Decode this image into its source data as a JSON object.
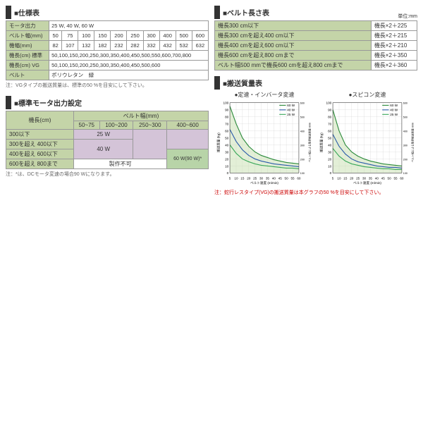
{
  "spec": {
    "title": "■仕様表",
    "rows": [
      {
        "label": "モータ出力",
        "values": [
          "25 W, 40 W, 60 W"
        ],
        "colspan": 10
      },
      {
        "label": "ベルト幅(mm)",
        "values": [
          "50",
          "75",
          "100",
          "150",
          "200",
          "250",
          "300",
          "400",
          "500",
          "600"
        ]
      },
      {
        "label": "機幅(mm)",
        "values": [
          "82",
          "107",
          "132",
          "182",
          "232",
          "282",
          "332",
          "432",
          "532",
          "632"
        ]
      },
      {
        "label": "機長(cm) 標準",
        "values": [
          "50,100,150,200,250,300,350,400,450,500,550,600,700,800"
        ],
        "colspan": 10
      },
      {
        "label": "機長(cm) VG",
        "values": [
          "50,100,150,200,250,300,350,400,450,500,600"
        ],
        "colspan": 10
      },
      {
        "label": "ベルト",
        "values": [
          "ポリウレタン　緑"
        ],
        "colspan": 10
      }
    ],
    "note": "注：VGタイプの搬送質量は、標準の50 %を目安にして下さい。"
  },
  "output": {
    "title": "■標準モータ出力設定",
    "header1": "機長(cm)",
    "header2": "ベルト幅(mm)",
    "widths": [
      "50~75",
      "100~200",
      "250~300",
      "400~600"
    ],
    "rows": [
      {
        "label": "300以下",
        "v": [
          "25 W",
          "",
          "",
          ""
        ],
        "merge": [
          4,
          0,
          0,
          0
        ],
        "cls": "wide"
      },
      {
        "label": "300を超え 400以下",
        "v": [
          "",
          "",
          "",
          ""
        ],
        "merge": [
          0,
          0,
          0,
          0
        ]
      },
      {
        "label": "400を超え 600以下",
        "v": [
          "40 W",
          "",
          "",
          ""
        ],
        "merge": [
          3,
          0,
          0,
          1
        ],
        "cls": "wide",
        "last": "60 W(90 W)*",
        "lastcls": "green"
      },
      {
        "label": "600を超え 800まで",
        "v": [
          "製作不可",
          "",
          "",
          ""
        ],
        "merge": [
          1,
          0,
          0,
          0
        ]
      }
    ],
    "note": "注：*は、DCモータ変速の場合90 Wになります。"
  },
  "belt": {
    "title": "■ベルト長さ表",
    "unit": "単位:mm",
    "rows": [
      {
        "cond": "機長300 cm以下",
        "val": "機長×2＋225"
      },
      {
        "cond": "機長300 cmを超え400 cm以下",
        "val": "機長×2＋215"
      },
      {
        "cond": "機長400 cmを超え600 cm以下",
        "val": "機長×2＋210"
      },
      {
        "cond": "機長600 cmを超え800 cmまで",
        "val": "機長×2＋350"
      },
      {
        "cond": "ベルト幅500 mmで機長600 cmを超え800 cmまで",
        "val": "機長×2＋360"
      }
    ]
  },
  "mass": {
    "title": "■搬送質量表",
    "chart1_label": "●定速・インバータ変速",
    "chart2_label": "●スピコン変速",
    "ylabel": "搬送質量 (kg)",
    "xlabel": "ベルト速度 (m/min)",
    "ylabel2": "ベルト幅による限界搬送質量 m/m",
    "ylim": [
      0,
      100
    ],
    "yticks": [
      0,
      10,
      20,
      30,
      40,
      50,
      60,
      70,
      80,
      90,
      100
    ],
    "xlim": [
      5,
      60
    ],
    "xticks": [
      5,
      10,
      15,
      20,
      25,
      30,
      35,
      40,
      45,
      50,
      55,
      60
    ],
    "ylim2": [
      100,
      600
    ],
    "series": [
      {
        "name": "60 W",
        "color": "#2a8a3a",
        "data": [
          [
            5,
            95
          ],
          [
            10,
            70
          ],
          [
            15,
            50
          ],
          [
            20,
            38
          ],
          [
            25,
            30
          ],
          [
            30,
            25
          ],
          [
            35,
            22
          ],
          [
            40,
            19
          ],
          [
            45,
            17
          ],
          [
            50,
            15
          ],
          [
            55,
            14
          ],
          [
            60,
            13
          ]
        ]
      },
      {
        "name": "40 W",
        "color": "#2a5aaa",
        "data": [
          [
            5,
            62
          ],
          [
            10,
            45
          ],
          [
            15,
            33
          ],
          [
            20,
            25
          ],
          [
            25,
            20
          ],
          [
            30,
            17
          ],
          [
            35,
            15
          ],
          [
            40,
            13
          ],
          [
            45,
            12
          ],
          [
            50,
            11
          ],
          [
            55,
            10
          ],
          [
            60,
            9
          ]
        ]
      },
      {
        "name": "25 W",
        "color": "#3aa85a",
        "data": [
          [
            5,
            40
          ],
          [
            10,
            28
          ],
          [
            15,
            20
          ],
          [
            20,
            16
          ],
          [
            25,
            13
          ],
          [
            30,
            11
          ],
          [
            35,
            10
          ],
          [
            40,
            9
          ],
          [
            45,
            8
          ],
          [
            50,
            7
          ],
          [
            55,
            7
          ],
          [
            60,
            6
          ]
        ]
      }
    ],
    "series2": [
      {
        "name": "60 W",
        "color": "#2a8a3a",
        "data": [
          [
            5,
            90
          ],
          [
            10,
            60
          ],
          [
            15,
            40
          ],
          [
            20,
            30
          ],
          [
            25,
            24
          ],
          [
            30,
            20
          ],
          [
            35,
            17
          ],
          [
            40,
            15
          ],
          [
            45,
            13
          ],
          [
            50,
            12
          ],
          [
            55,
            11
          ],
          [
            60,
            10
          ]
        ]
      },
      {
        "name": "40 W",
        "color": "#2a5aaa",
        "data": [
          [
            5,
            55
          ],
          [
            10,
            38
          ],
          [
            15,
            27
          ],
          [
            20,
            20
          ],
          [
            25,
            16
          ],
          [
            30,
            14
          ],
          [
            35,
            12
          ],
          [
            40,
            10
          ],
          [
            45,
            9
          ],
          [
            50,
            8
          ],
          [
            55,
            8
          ],
          [
            60,
            7
          ]
        ]
      },
      {
        "name": "25 W",
        "color": "#3aa85a",
        "data": [
          [
            5,
            35
          ],
          [
            10,
            24
          ],
          [
            15,
            17
          ],
          [
            20,
            13
          ],
          [
            25,
            11
          ],
          [
            30,
            9
          ],
          [
            35,
            8
          ],
          [
            40,
            7
          ],
          [
            45,
            6
          ],
          [
            50,
            6
          ],
          [
            55,
            5
          ],
          [
            60,
            5
          ]
        ]
      }
    ],
    "fill_color": "#c8e0b0",
    "grid_color": "#ccc",
    "note": "注：蛇行レスタイプ(VG)の搬送質量は本グラフの50 %を目安にして下さい。"
  }
}
